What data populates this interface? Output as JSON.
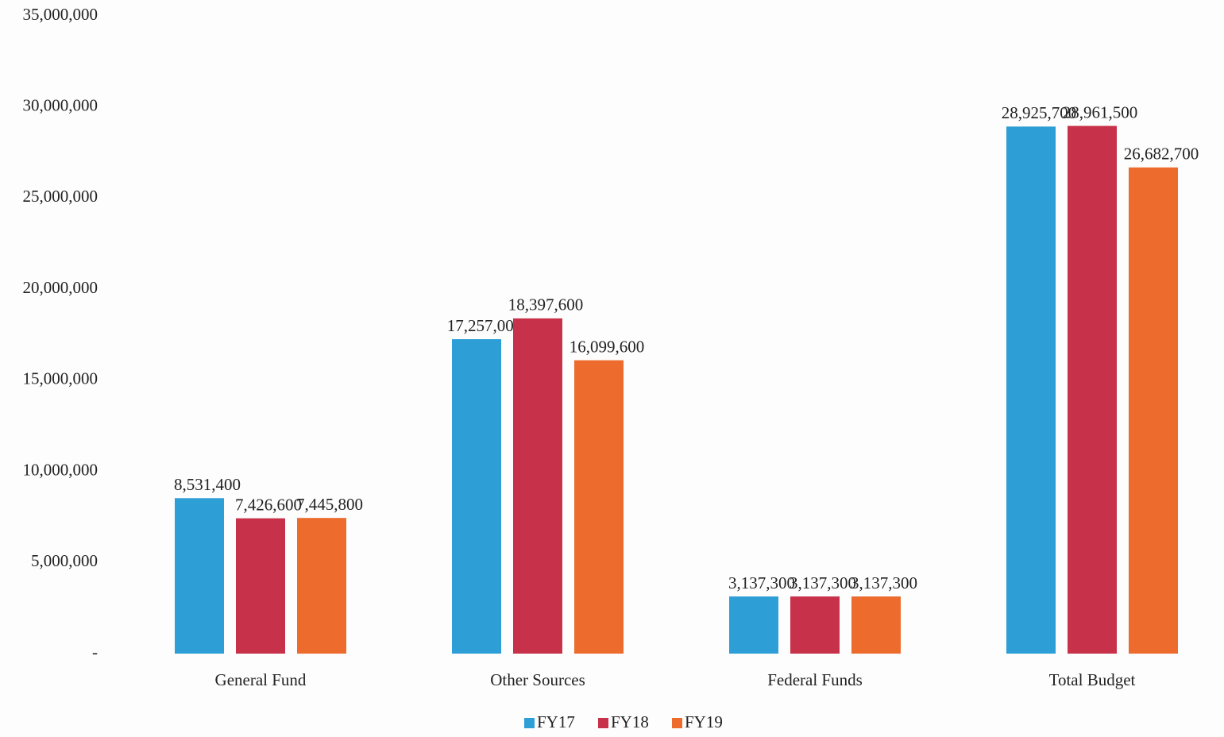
{
  "chart_data": {
    "type": "bar",
    "categories": [
      "General Fund",
      "Other Sources",
      "Federal Funds",
      "Total Budget"
    ],
    "series": [
      {
        "name": "FY17",
        "color": "#2e9fd6",
        "values": [
          8531400,
          17257000,
          3137300,
          28925700
        ],
        "value_labels": [
          "8,531,400",
          "17,257,000",
          "3,137,300",
          "28,925,700"
        ]
      },
      {
        "name": "FY18",
        "color": "#c8314a",
        "values": [
          7426600,
          18397600,
          3137300,
          28961500
        ],
        "value_labels": [
          "7,426,600",
          "18,397,600",
          "3,137,300",
          "28,961,500"
        ]
      },
      {
        "name": "FY19",
        "color": "#ec6b2d",
        "values": [
          7445800,
          16099600,
          3137300,
          26682700
        ],
        "value_labels": [
          "7,445,800",
          "16,099,600",
          "3,137,300",
          "26,682,700"
        ]
      }
    ],
    "ylim": [
      0,
      35000000
    ],
    "yticks": [
      {
        "value": 0,
        "label": "-"
      },
      {
        "value": 5000000,
        "label": "5,000,000"
      },
      {
        "value": 10000000,
        "label": "10,000,000"
      },
      {
        "value": 15000000,
        "label": "15,000,000"
      },
      {
        "value": 20000000,
        "label": "20,000,000"
      },
      {
        "value": 25000000,
        "label": "25,000,000"
      },
      {
        "value": 30000000,
        "label": "30,000,000"
      },
      {
        "value": 35000000,
        "label": "35,000,000"
      }
    ],
    "grid": false,
    "legend": "bottom"
  }
}
